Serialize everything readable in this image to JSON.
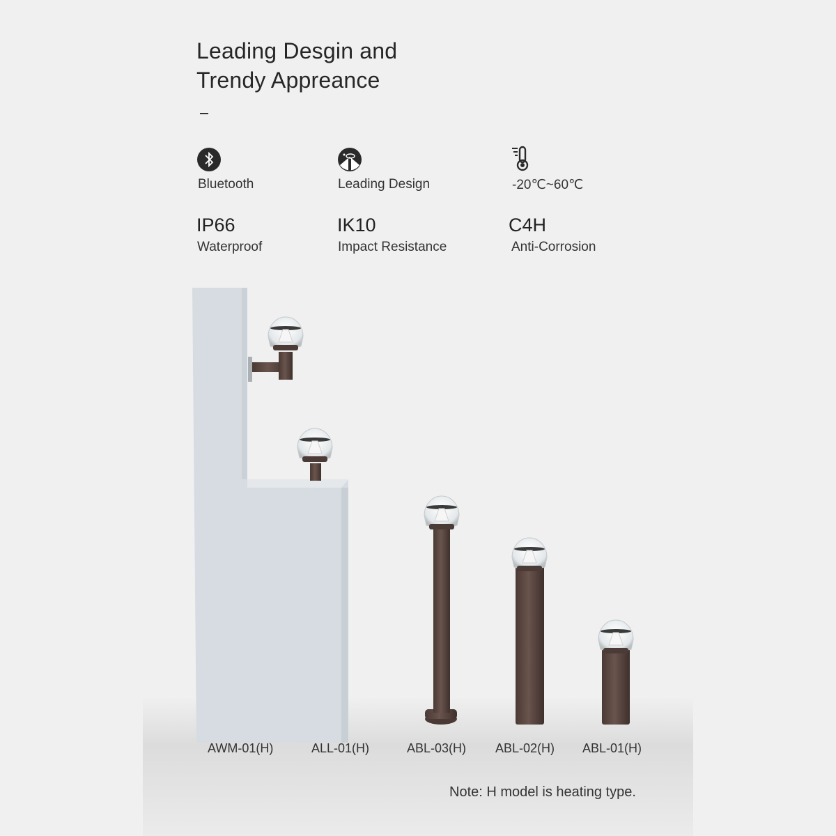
{
  "heading": {
    "line1": "Leading Desgin and",
    "line2": "Trendy Appreance"
  },
  "features": [
    {
      "icon": "bluetooth-icon",
      "label": "Bluetooth"
    },
    {
      "icon": "design-icon",
      "label": "Leading Design"
    },
    {
      "icon": "thermometer-icon",
      "label": "-20℃~60℃"
    }
  ],
  "specs": [
    {
      "value": "IP66",
      "label": "Waterproof"
    },
    {
      "value": "IK10",
      "label": "Impact Resistance"
    },
    {
      "value": "C4H",
      "label": "Anti-Corrosion"
    }
  ],
  "models": [
    "AWM-01(H)",
    "ALL-01(H)",
    "ABL-03(H)",
    "ABL-02(H)",
    "ABL-01(H)"
  ],
  "note": "Note: H model is heating type.",
  "colors": {
    "background": "#f0f0f0",
    "wall": "#d6dce1",
    "lamp_body": "#5b4741"
  }
}
